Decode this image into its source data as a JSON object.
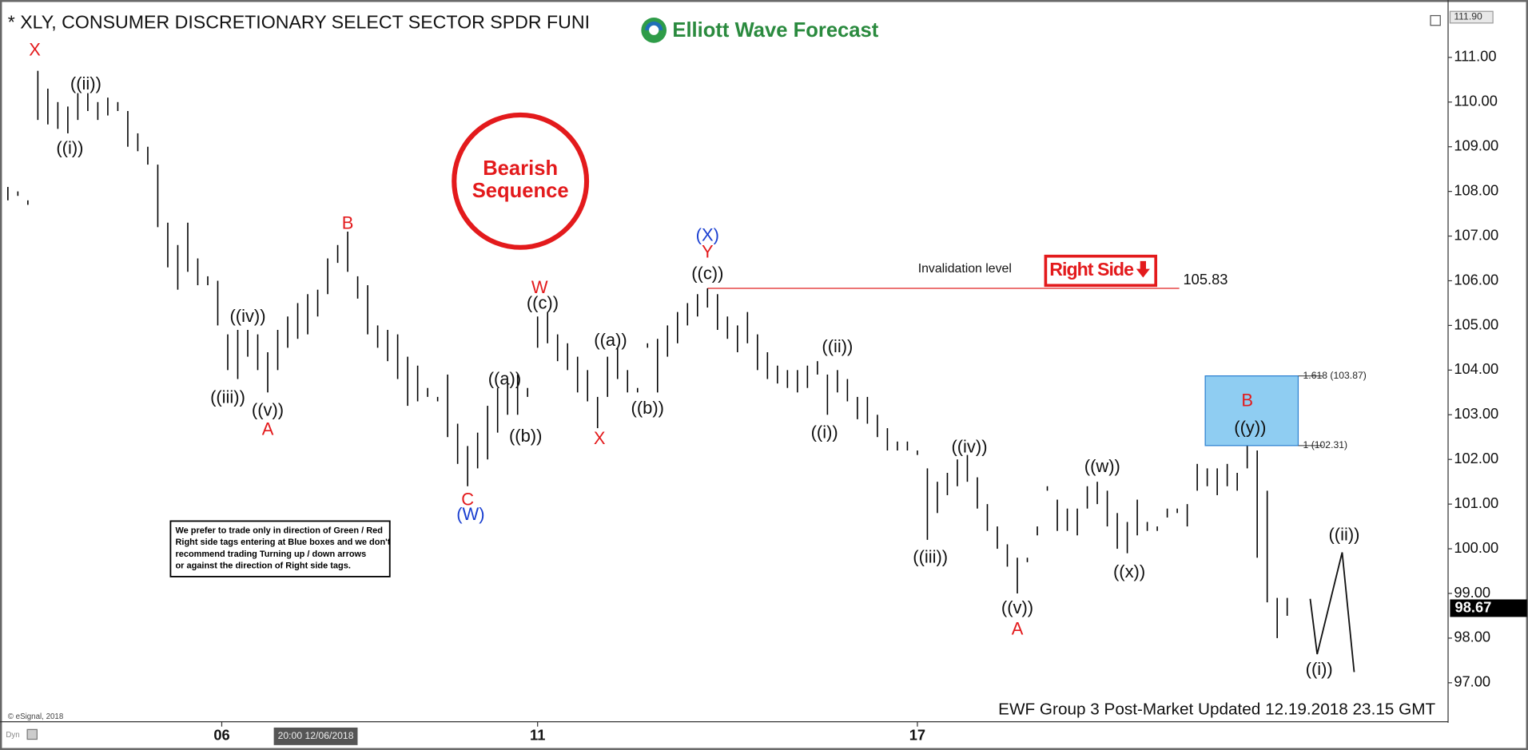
{
  "chart_data": {
    "type": "hl_bar",
    "title": "* XLY, CONSUMER DISCRETIONARY SELECT SECTOR SPDR FUNI",
    "logo": "Elliott Wave Forecast",
    "badge": [
      "Bearish",
      "Sequence"
    ],
    "right_side": "Right Side",
    "note": [
      "We prefer to trade only in direction of Green / Red",
      "Right side tags entering at Blue boxes and we don't",
      "recommend trading Turning up / down arrows",
      "or against the direction of Right side tags."
    ],
    "footer": "EWF Group 3 Post-Market Updated 12.19.2018 23.15 GMT",
    "copyright": "© eSignal, 2018",
    "mode": "Dyn",
    "color": "#000000",
    "high": [
      108.1,
      108.0,
      107.8,
      110.7,
      110.3,
      110.0,
      109.9,
      110.2,
      110.2,
      110.0,
      110.1,
      110.0,
      109.8,
      109.3,
      109.0,
      108.6,
      107.3,
      106.8,
      107.3,
      106.5,
      106.1,
      106.0,
      104.8,
      104.9,
      104.9,
      104.8,
      104.4,
      104.9,
      105.2,
      105.5,
      105.7,
      105.8,
      106.5,
      106.8,
      107.1,
      106.1,
      105.9,
      105.0,
      104.9,
      104.8,
      104.3,
      104.1,
      103.6,
      103.4,
      103.9,
      102.8,
      102.3,
      102.6,
      103.2,
      103.6,
      103.7,
      103.9,
      103.6,
      105.2,
      105.3,
      104.8,
      104.6,
      104.3,
      104.0,
      103.4,
      104.3,
      104.5,
      104.0,
      103.6,
      104.6,
      104.7,
      105.0,
      105.3,
      105.5,
      105.7,
      105.83,
      105.7,
      105.2,
      105.0,
      105.3,
      104.8,
      104.4,
      104.1,
      104.0,
      104.0,
      104.1,
      104.2,
      103.9,
      104.0,
      103.8,
      103.4,
      103.4,
      103.0,
      102.7,
      102.4,
      102.4,
      102.2,
      101.8,
      101.5,
      101.7,
      102.0,
      102.1,
      101.6,
      101.0,
      100.5,
      100.1,
      99.8,
      99.8,
      100.5,
      101.4,
      101.1,
      100.9,
      100.9,
      101.4,
      101.5,
      101.3,
      100.8,
      100.6,
      101.1,
      100.6,
      100.5,
      100.9,
      100.9,
      101.0,
      101.9,
      101.8,
      101.8,
      101.9,
      101.7,
      102.3,
      102.2,
      101.3,
      98.9,
      98.9,
      98.7
    ],
    "low": [
      107.8,
      107.9,
      107.7,
      109.6,
      109.5,
      109.4,
      109.3,
      109.6,
      109.8,
      109.6,
      109.7,
      109.8,
      109.0,
      108.9,
      108.6,
      107.2,
      106.3,
      105.8,
      106.2,
      105.9,
      105.9,
      105.0,
      104.0,
      103.8,
      104.3,
      104.0,
      103.5,
      104.0,
      104.5,
      104.7,
      104.8,
      105.2,
      105.7,
      106.4,
      106.2,
      105.6,
      104.8,
      104.5,
      104.2,
      103.8,
      103.2,
      103.3,
      103.4,
      103.3,
      102.5,
      101.9,
      101.4,
      101.8,
      102.0,
      102.6,
      103.0,
      103.0,
      103.4,
      104.5,
      104.6,
      104.2,
      104.0,
      103.5,
      103.3,
      102.7,
      103.4,
      103.8,
      103.5,
      103.5,
      104.5,
      103.5,
      104.3,
      104.6,
      105.0,
      105.2,
      105.4,
      104.9,
      104.7,
      104.4,
      104.6,
      104.0,
      103.8,
      103.7,
      103.6,
      103.5,
      103.6,
      103.9,
      103.0,
      103.5,
      103.3,
      102.9,
      102.8,
      102.5,
      102.2,
      102.2,
      102.2,
      102.1,
      100.2,
      100.8,
      101.2,
      101.4,
      101.5,
      100.9,
      100.4,
      100.0,
      99.6,
      99.0,
      99.7,
      100.3,
      101.3,
      100.4,
      100.4,
      100.3,
      100.9,
      101.0,
      100.5,
      100.0,
      99.9,
      100.3,
      100.4,
      100.4,
      100.7,
      100.8,
      100.5,
      101.3,
      101.4,
      101.2,
      101.4,
      101.3,
      101.8,
      99.8,
      98.8,
      98.0,
      98.5,
      98.7
    ],
    "xlim": [
      -0.3,
      144
    ],
    "ylim": [
      96.15,
      112.11
    ],
    "xticks": [
      {
        "value": 21.4,
        "label": "06"
      },
      {
        "value": 53,
        "label": "11"
      },
      {
        "value": 91,
        "label": "17"
      }
    ],
    "yticks": [
      {
        "value": 97,
        "label": "97.00"
      },
      {
        "value": 98,
        "label": "98.00"
      },
      {
        "value": 99,
        "label": "99.00"
      },
      {
        "value": 100,
        "label": "100.00"
      },
      {
        "value": 101,
        "label": "101.00"
      },
      {
        "value": 102,
        "label": "102.00"
      },
      {
        "value": 103,
        "label": "103.00"
      },
      {
        "value": 104,
        "label": "104.00"
      },
      {
        "value": 105,
        "label": "105.00"
      },
      {
        "value": 106,
        "label": "106.00"
      },
      {
        "value": 107,
        "label": "107.00"
      },
      {
        "value": 108,
        "label": "108.00"
      },
      {
        "value": 109,
        "label": "109.00"
      },
      {
        "value": 110,
        "label": "110.00"
      },
      {
        "value": 111,
        "label": "111.00"
      }
    ],
    "cursor": {
      "x": 30.8,
      "label": "20:00 12/06/2018"
    },
    "high_tag": {
      "value": 111.9,
      "label": "111.90"
    },
    "last": {
      "value": 98.67,
      "label": "98.67"
    },
    "invalidation": {
      "value": 105.83,
      "x": [
        70,
        117.2
      ],
      "label": "Invalidation level",
      "color": "#e02020"
    },
    "blue_box": {
      "x": [
        119.8,
        129.1
      ],
      "top": 103.87,
      "bottom": 102.31,
      "labels": [
        "1.618 (103.87)",
        "1 (102.31)"
      ],
      "color": "#8fcdf2"
    },
    "projection": {
      "x": [
        130.3,
        131,
        133.5,
        134.7
      ],
      "y": [
        98.88,
        97.64,
        99.92,
        97.24
      ]
    },
    "annotations": [
      {
        "text": "X",
        "x": 2.7,
        "y": 111.15,
        "color": "#e31a1c"
      },
      {
        "text": "((ii))",
        "x": 7.8,
        "y": 110.39,
        "color": "#111111"
      },
      {
        "text": "((i))",
        "x": 6.2,
        "y": 108.95,
        "color": "#111111"
      },
      {
        "text": "B",
        "x": 34,
        "y": 107.27,
        "color": "#e31a1c"
      },
      {
        "text": "((iv))",
        "x": 24,
        "y": 105.18,
        "color": "#111111"
      },
      {
        "text": "((iii))",
        "x": 22,
        "y": 103.37,
        "color": "#111111"
      },
      {
        "text": "((v))",
        "x": 26,
        "y": 103.08,
        "color": "#111111"
      },
      {
        "text": "A",
        "x": 26,
        "y": 102.65,
        "color": "#e31a1c"
      },
      {
        "text": "C",
        "x": 46,
        "y": 101.08,
        "color": "#e31a1c"
      },
      {
        "text": "(W)",
        "x": 46.3,
        "y": 100.75,
        "color": "#1a3fd0"
      },
      {
        "text": "((a))",
        "x": 49.7,
        "y": 103.78,
        "color": "#111111"
      },
      {
        "text": "((b))",
        "x": 51.8,
        "y": 102.5,
        "color": "#111111"
      },
      {
        "text": "W",
        "x": 53.2,
        "y": 105.83,
        "color": "#e31a1c"
      },
      {
        "text": "((c))",
        "x": 53.5,
        "y": 105.48,
        "color": "#111111"
      },
      {
        "text": "X",
        "x": 59.2,
        "y": 102.45,
        "color": "#e31a1c"
      },
      {
        "text": "((a))",
        "x": 60.3,
        "y": 104.65,
        "color": "#111111"
      },
      {
        "text": "((b))",
        "x": 64,
        "y": 103.13,
        "color": "#111111"
      },
      {
        "text": "(X)",
        "x": 70,
        "y": 107.0,
        "color": "#1a3fd0"
      },
      {
        "text": "Y",
        "x": 70,
        "y": 106.62,
        "color": "#e31a1c"
      },
      {
        "text": "((c))",
        "x": 70,
        "y": 106.14,
        "color": "#111111"
      },
      {
        "text": "((ii))",
        "x": 83,
        "y": 104.5,
        "color": "#111111"
      },
      {
        "text": "((i))",
        "x": 81.7,
        "y": 102.58,
        "color": "#111111"
      },
      {
        "text": "((iv))",
        "x": 96.2,
        "y": 102.26,
        "color": "#111111"
      },
      {
        "text": "((iii))",
        "x": 92.3,
        "y": 99.79,
        "color": "#111111"
      },
      {
        "text": "((v))",
        "x": 101,
        "y": 98.66,
        "color": "#111111"
      },
      {
        "text": "A",
        "x": 101,
        "y": 98.18,
        "color": "#e31a1c"
      },
      {
        "text": "((w))",
        "x": 109.5,
        "y": 101.82,
        "color": "#111111"
      },
      {
        "text": "((x))",
        "x": 112.2,
        "y": 99.46,
        "color": "#111111"
      },
      {
        "text": "B",
        "x": 124,
        "y": 103.3,
        "color": "#e31a1c"
      },
      {
        "text": "((y))",
        "x": 124.3,
        "y": 102.69,
        "color": "#111111"
      },
      {
        "text": "((ii))",
        "x": 133.7,
        "y": 100.29,
        "color": "#111111"
      },
      {
        "text": "((i))",
        "x": 131.2,
        "y": 97.28,
        "color": "#111111"
      }
    ]
  }
}
